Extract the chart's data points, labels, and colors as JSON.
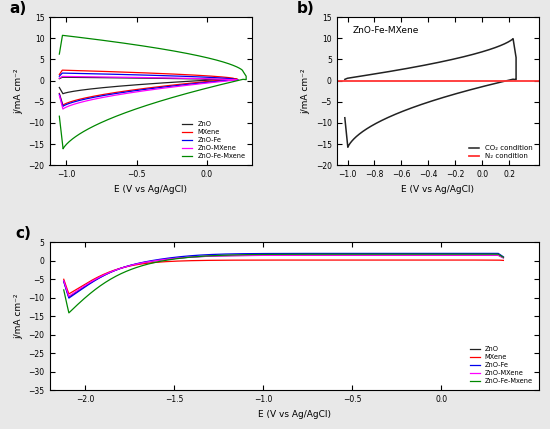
{
  "fig_width": 5.5,
  "fig_height": 4.29,
  "dpi": 100,
  "background_color": "#e8e8e8",
  "panel_a": {
    "label": "a)",
    "xlabel": "E (V vs Ag/AgCl)",
    "ylabel": "j/mA cm⁻²",
    "xlim": [
      -1.12,
      0.32
    ],
    "ylim": [
      -20,
      15
    ],
    "yticks": [
      -20,
      -15,
      -10,
      -5,
      0,
      5,
      10,
      15
    ],
    "xticks": [
      -1.0,
      -0.5,
      0.0
    ],
    "legend": [
      "ZnO",
      "MXene",
      "ZnO-Fe",
      "ZnO-MXene",
      "ZnO-Fe-Mxene"
    ],
    "colors": [
      "#222222",
      "#ff0000",
      "#0000ee",
      "#ff00ff",
      "#008800"
    ]
  },
  "panel_b": {
    "label": "b)",
    "title": "ZnO-Fe-MXene",
    "xlabel": "E (V vs Ag/AgCl)",
    "ylabel": "j/mA cm⁻²",
    "xlim": [
      -1.08,
      0.42
    ],
    "ylim": [
      -20,
      15
    ],
    "yticks": [
      -20,
      -15,
      -10,
      -5,
      0,
      5,
      10,
      15
    ],
    "xticks": [
      -1.0,
      -0.8,
      -0.6,
      -0.4,
      -0.2,
      0.0,
      0.2
    ],
    "legend": [
      "CO₂ condition",
      "N₂ condition"
    ],
    "colors": [
      "#222222",
      "#ff3333"
    ]
  },
  "panel_c": {
    "label": "c)",
    "xlabel": "E (V vs Ag/AgCl)",
    "ylabel": "j/mA cm⁻²",
    "xlim": [
      -2.2,
      0.55
    ],
    "ylim": [
      -35,
      5
    ],
    "yticks": [
      -35,
      -30,
      -25,
      -20,
      -15,
      -10,
      -5,
      0,
      5
    ],
    "xticks": [
      -2.0,
      -1.5,
      -1.0,
      -0.5,
      0.0
    ],
    "legend": [
      "ZnO",
      "MXene",
      "ZnO-Fe",
      "ZnO-MXene",
      "ZnO-Fe-Mxene"
    ],
    "colors": [
      "#222222",
      "#ff0000",
      "#0000ee",
      "#ff00ff",
      "#008800"
    ]
  }
}
